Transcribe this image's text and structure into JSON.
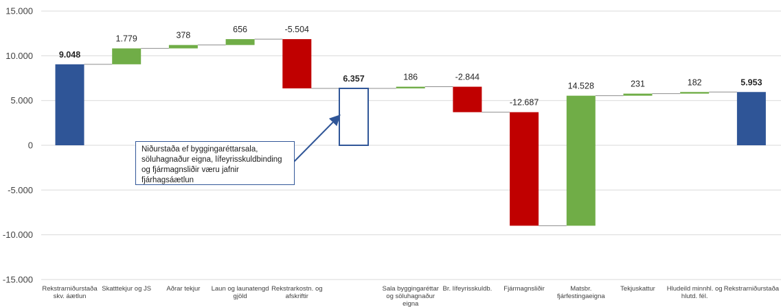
{
  "chart_data": {
    "type": "waterfall",
    "title": "",
    "xlabel": "",
    "ylabel": "",
    "ylim": [
      -15000,
      15000
    ],
    "ytick_values": [
      -15000,
      -10000,
      -5000,
      0,
      5000,
      10000,
      15000
    ],
    "ytick_labels": [
      "-15.000",
      "-10.000",
      "-5.000",
      "0",
      "5.000",
      "10.000",
      "15.000"
    ],
    "grid": true,
    "colors": {
      "total": "#2f5597",
      "increase": "#70ad47",
      "decrease": "#c00000",
      "subtotal_outline": "#2f5597",
      "connector": "#8c8c8c",
      "grid": "#d9d9d9"
    },
    "bars": [
      {
        "category": [
          "Rekstrarniðurstaða",
          "skv. áætlun"
        ],
        "kind": "total",
        "value": 9048,
        "label": "9.048",
        "bold": true
      },
      {
        "category": [
          "Skatttekjur og JS"
        ],
        "kind": "delta",
        "value": 1779,
        "label": "1.779"
      },
      {
        "category": [
          "Aðrar tekjur"
        ],
        "kind": "delta",
        "value": 378,
        "label": "378"
      },
      {
        "category": [
          "Laun og launatengd",
          "gjöld"
        ],
        "kind": "delta",
        "value": 656,
        "label": "656"
      },
      {
        "category": [
          "Rekstrarkostn. og",
          "afskriftir"
        ],
        "kind": "delta",
        "value": -5504,
        "label": "-5.504"
      },
      {
        "category": [],
        "kind": "subtotal",
        "value": 6357,
        "label": "6.357",
        "bold": true
      },
      {
        "category": [
          "Sala byggingaréttar",
          "og söluhagnaður",
          "eigna"
        ],
        "kind": "delta",
        "value": 186,
        "label": "186"
      },
      {
        "category": [
          "Br. lífeyrisskuldb."
        ],
        "kind": "delta",
        "value": -2844,
        "label": "-2.844"
      },
      {
        "category": [
          "Fjármagnsliðir"
        ],
        "kind": "delta",
        "value": -12687,
        "label": "-12.687"
      },
      {
        "category": [
          "Matsbr.",
          "fjárfestingaeigna"
        ],
        "kind": "delta",
        "value": 14528,
        "label": "14.528"
      },
      {
        "category": [
          "Tekjuskattur"
        ],
        "kind": "delta",
        "value": 231,
        "label": "231"
      },
      {
        "category": [
          "Hludeild minnhl. og",
          "hlutd. fél."
        ],
        "kind": "delta",
        "value": 182,
        "label": "182"
      },
      {
        "category": [
          "Rekstrarniðurstaða"
        ],
        "kind": "total",
        "value": 5953,
        "label": "5.953",
        "bold": true
      }
    ],
    "annotation": {
      "text": "Niðurstaða ef byggingaréttarsala, söluhagnaður eigna, lífeyrisskuldbinding og fjármagnsliðir væru jafnir fjárhagsáætlun",
      "points_to_bar": 5
    }
  }
}
